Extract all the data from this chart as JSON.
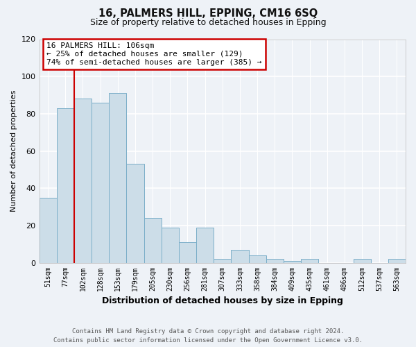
{
  "title": "16, PALMERS HILL, EPPING, CM16 6SQ",
  "subtitle": "Size of property relative to detached houses in Epping",
  "xlabel": "Distribution of detached houses by size in Epping",
  "ylabel": "Number of detached properties",
  "bin_labels": [
    "51sqm",
    "77sqm",
    "102sqm",
    "128sqm",
    "153sqm",
    "179sqm",
    "205sqm",
    "230sqm",
    "256sqm",
    "281sqm",
    "307sqm",
    "333sqm",
    "358sqm",
    "384sqm",
    "409sqm",
    "435sqm",
    "461sqm",
    "486sqm",
    "512sqm",
    "537sqm",
    "563sqm"
  ],
  "bar_heights": [
    35,
    83,
    88,
    86,
    91,
    53,
    24,
    19,
    11,
    19,
    2,
    7,
    4,
    2,
    1,
    2,
    0,
    0,
    2,
    0,
    2
  ],
  "bar_color": "#ccdde8",
  "bar_edge_color": "#7aaec8",
  "ylim": [
    0,
    120
  ],
  "yticks": [
    0,
    20,
    40,
    60,
    80,
    100,
    120
  ],
  "vline_x_idx": 2,
  "vline_color": "#cc0000",
  "annotation_title": "16 PALMERS HILL: 106sqm",
  "annotation_line1": "← 25% of detached houses are smaller (129)",
  "annotation_line2": "74% of semi-detached houses are larger (385) →",
  "annotation_box_color": "#cc0000",
  "footer_line1": "Contains HM Land Registry data © Crown copyright and database right 2024.",
  "footer_line2": "Contains public sector information licensed under the Open Government Licence v3.0.",
  "bg_color": "#eef2f7",
  "grid_color": "#ffffff"
}
